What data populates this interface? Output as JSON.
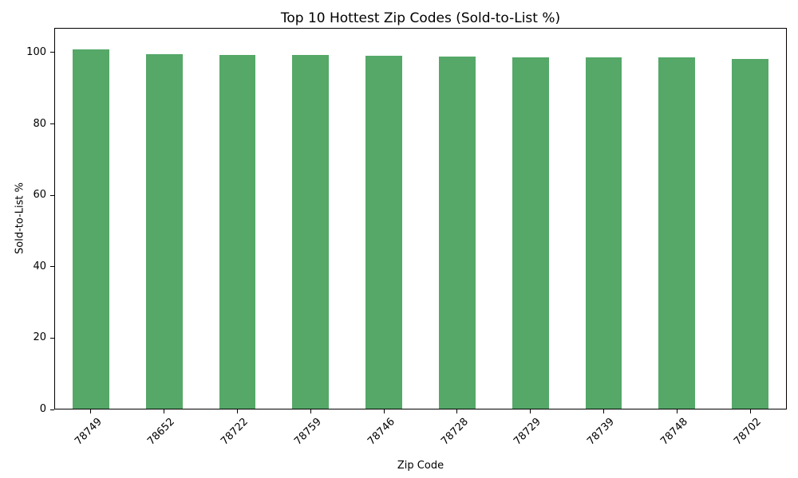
{
  "chart_data": {
    "type": "bar",
    "title": "Top 10 Hottest Zip Codes (Sold-to-List %)",
    "xlabel": "Zip Code",
    "ylabel": "Sold-to-List %",
    "categories": [
      "78749",
      "78652",
      "78722",
      "78759",
      "78746",
      "78728",
      "78729",
      "78739",
      "78748",
      "78702"
    ],
    "values": [
      101.0,
      99.8,
      99.6,
      99.5,
      99.3,
      99.1,
      98.9,
      98.9,
      98.8,
      98.4
    ],
    "yticks": [
      0,
      20,
      40,
      60,
      80,
      100
    ],
    "ylim": [
      0,
      106.9
    ],
    "bar_color": "#55a868",
    "spine_color": "#000000",
    "grid": false,
    "legend": null,
    "xtick_rotation": 45,
    "bar_width_fraction": 0.5
  }
}
